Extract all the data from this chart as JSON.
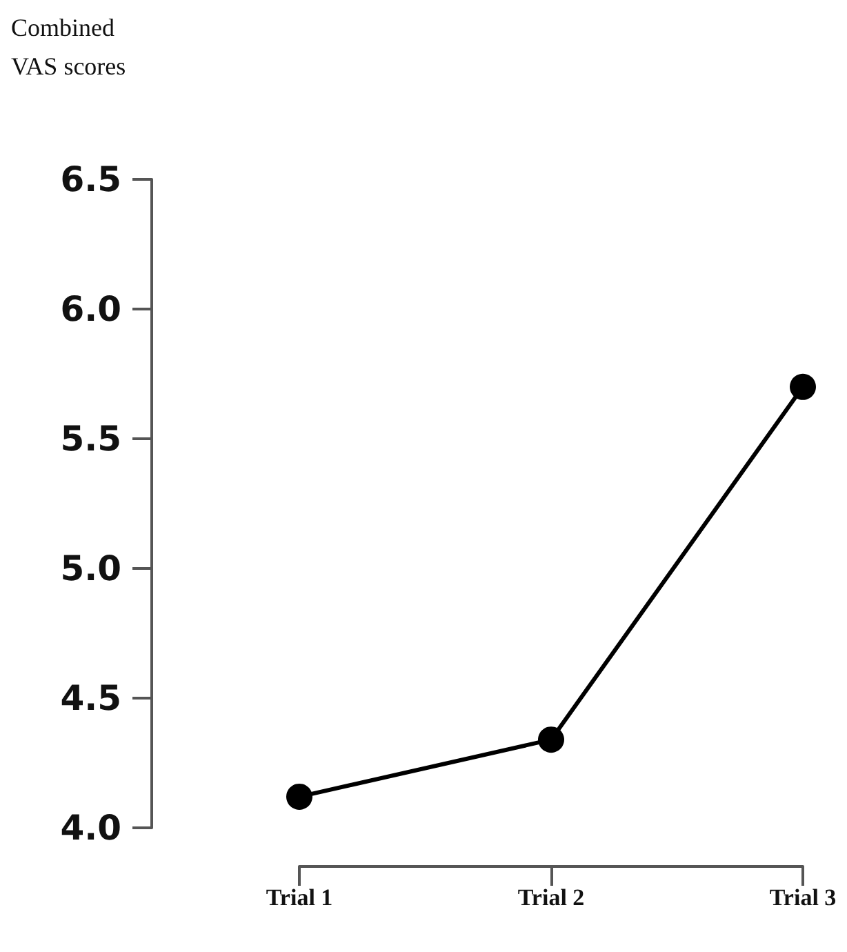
{
  "chart_data": {
    "type": "line",
    "ylabel": "Combined VAS scores",
    "categories": [
      "Trial 1",
      "Trial 2",
      "Trial 3"
    ],
    "series": [
      {
        "color": "#000000",
        "values": [
          4.12,
          4.34,
          5.7
        ]
      }
    ],
    "ylim": [
      4,
      6.5
    ],
    "yticks": [
      {
        "value": 4,
        "label": "4.0"
      },
      4.5,
      {
        "value": 5,
        "label": "5.0"
      },
      5.5,
      {
        "value": 6,
        "label": "6.0"
      },
      6.5
    ],
    "grid": false,
    "marker": "circle",
    "line_style": "solid"
  }
}
